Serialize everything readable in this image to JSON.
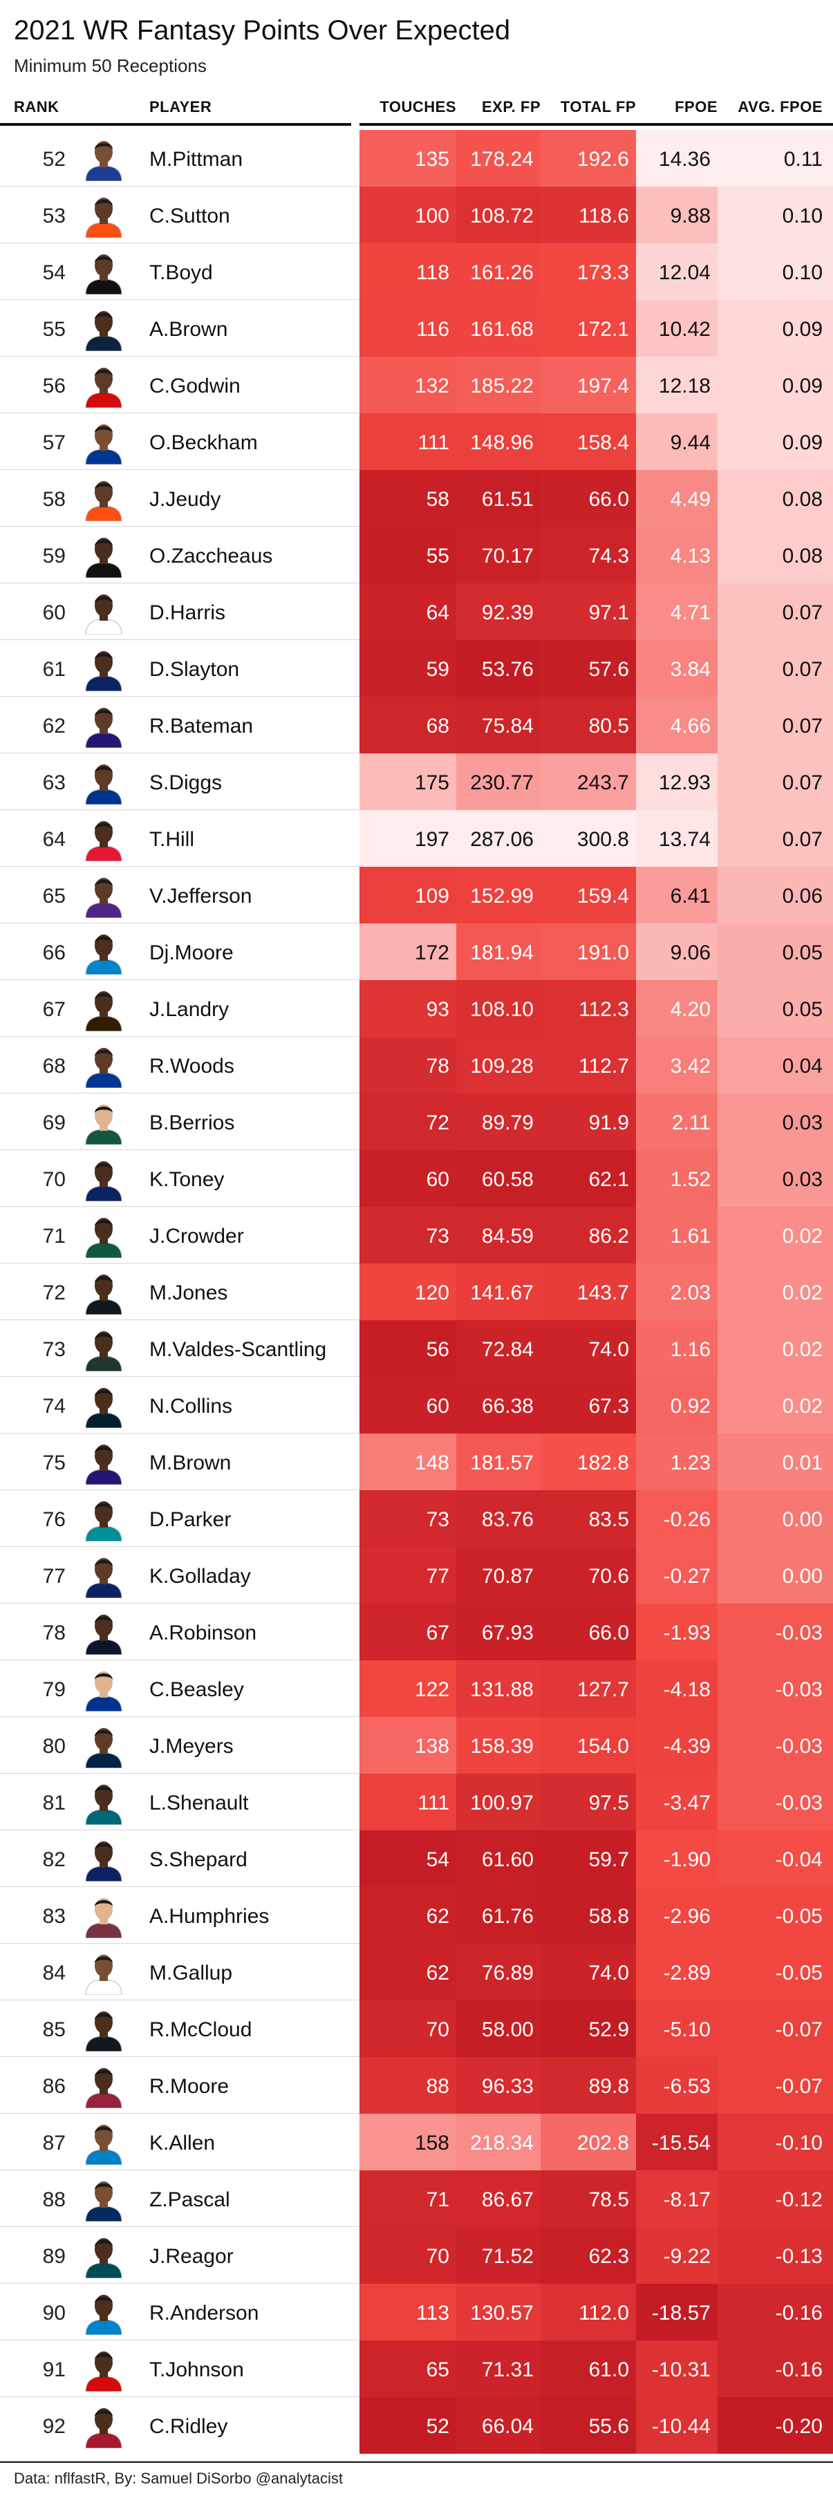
{
  "title": "2021 WR Fantasy Points Over Expected",
  "subtitle": "Minimum 50 Receptions",
  "caption": "Data: nflfastR, By: Samuel DiSorbo @analytacist",
  "headers": {
    "rank": "RANK",
    "player": "PLAYER",
    "touches": "TOUCHES",
    "exp_fp": "EXP. FP",
    "total_fp": "TOTAL FP",
    "fpoe": "FPOE",
    "avg_fpoe": "AVG. FPOE"
  },
  "icons": {
    "avatar": "player-headshot-icon"
  },
  "colors": {
    "high": "#ffecec",
    "low": "#c41c24"
  },
  "rows": [
    {
      "rank": "52",
      "player": "M.Pittman",
      "touches": "135",
      "exp_fp": "178.24",
      "total_fp": "192.6",
      "fpoe": "14.36",
      "avg_fpoe": "0.11",
      "jersey": "#1b3d8f",
      "skin": "#7a4e33"
    },
    {
      "rank": "53",
      "player": "C.Sutton",
      "touches": "100",
      "exp_fp": "108.72",
      "total_fp": "118.6",
      "fpoe": "9.88",
      "avg_fpoe": "0.10",
      "jersey": "#fb4f14",
      "skin": "#5e3b27"
    },
    {
      "rank": "54",
      "player": "T.Boyd",
      "touches": "118",
      "exp_fp": "161.26",
      "total_fp": "173.3",
      "fpoe": "12.04",
      "avg_fpoe": "0.10",
      "jersey": "#111111",
      "skin": "#5e3b27"
    },
    {
      "rank": "55",
      "player": "A.Brown",
      "touches": "116",
      "exp_fp": "161.68",
      "total_fp": "172.1",
      "fpoe": "10.42",
      "avg_fpoe": "0.09",
      "jersey": "#0c2340",
      "skin": "#4b2e1e"
    },
    {
      "rank": "56",
      "player": "C.Godwin",
      "touches": "132",
      "exp_fp": "185.22",
      "total_fp": "197.4",
      "fpoe": "12.18",
      "avg_fpoe": "0.09",
      "jersey": "#d50a0a",
      "skin": "#5e3b27"
    },
    {
      "rank": "57",
      "player": "O.Beckham",
      "touches": "111",
      "exp_fp": "148.96",
      "total_fp": "158.4",
      "fpoe": "9.44",
      "avg_fpoe": "0.09",
      "jersey": "#003594",
      "skin": "#7a4e33"
    },
    {
      "rank": "58",
      "player": "J.Jeudy",
      "touches": "58",
      "exp_fp": "61.51",
      "total_fp": "66.0",
      "fpoe": "4.49",
      "avg_fpoe": "0.08",
      "jersey": "#fb4f14",
      "skin": "#5e3b27"
    },
    {
      "rank": "59",
      "player": "O.Zaccheaus",
      "touches": "55",
      "exp_fp": "70.17",
      "total_fp": "74.3",
      "fpoe": "4.13",
      "avg_fpoe": "0.08",
      "jersey": "#111111",
      "skin": "#4b2e1e"
    },
    {
      "rank": "60",
      "player": "D.Harris",
      "touches": "64",
      "exp_fp": "92.39",
      "total_fp": "97.1",
      "fpoe": "4.71",
      "avg_fpoe": "0.07",
      "jersey": "#ffffff",
      "skin": "#4b2e1e"
    },
    {
      "rank": "61",
      "player": "D.Slayton",
      "touches": "59",
      "exp_fp": "53.76",
      "total_fp": "57.6",
      "fpoe": "3.84",
      "avg_fpoe": "0.07",
      "jersey": "#0b2265",
      "skin": "#4b2e1e"
    },
    {
      "rank": "62",
      "player": "R.Bateman",
      "touches": "68",
      "exp_fp": "75.84",
      "total_fp": "80.5",
      "fpoe": "4.66",
      "avg_fpoe": "0.07",
      "jersey": "#241773",
      "skin": "#5e3b27"
    },
    {
      "rank": "63",
      "player": "S.Diggs",
      "touches": "175",
      "exp_fp": "230.77",
      "total_fp": "243.7",
      "fpoe": "12.93",
      "avg_fpoe": "0.07",
      "jersey": "#00338d",
      "skin": "#5e3b27"
    },
    {
      "rank": "64",
      "player": "T.Hill",
      "touches": "197",
      "exp_fp": "287.06",
      "total_fp": "300.8",
      "fpoe": "13.74",
      "avg_fpoe": "0.07",
      "jersey": "#e31837",
      "skin": "#4b2e1e"
    },
    {
      "rank": "65",
      "player": "V.Jefferson",
      "touches": "109",
      "exp_fp": "152.99",
      "total_fp": "159.4",
      "fpoe": "6.41",
      "avg_fpoe": "0.06",
      "jersey": "#4f2683",
      "skin": "#5e3b27"
    },
    {
      "rank": "66",
      "player": "Dj.Moore",
      "touches": "172",
      "exp_fp": "181.94",
      "total_fp": "191.0",
      "fpoe": "9.06",
      "avg_fpoe": "0.05",
      "jersey": "#0085ca",
      "skin": "#4b2e1e"
    },
    {
      "rank": "67",
      "player": "J.Landry",
      "touches": "93",
      "exp_fp": "108.10",
      "total_fp": "112.3",
      "fpoe": "4.20",
      "avg_fpoe": "0.05",
      "jersey": "#311d00",
      "skin": "#4b2e1e"
    },
    {
      "rank": "68",
      "player": "R.Woods",
      "touches": "78",
      "exp_fp": "109.28",
      "total_fp": "112.7",
      "fpoe": "3.42",
      "avg_fpoe": "0.04",
      "jersey": "#003594",
      "skin": "#5e3b27"
    },
    {
      "rank": "69",
      "player": "B.Berrios",
      "touches": "72",
      "exp_fp": "89.79",
      "total_fp": "91.9",
      "fpoe": "2.11",
      "avg_fpoe": "0.03",
      "jersey": "#125740",
      "skin": "#e0b48f"
    },
    {
      "rank": "70",
      "player": "K.Toney",
      "touches": "60",
      "exp_fp": "60.58",
      "total_fp": "62.1",
      "fpoe": "1.52",
      "avg_fpoe": "0.03",
      "jersey": "#0b2265",
      "skin": "#4b2e1e"
    },
    {
      "rank": "71",
      "player": "J.Crowder",
      "touches": "73",
      "exp_fp": "84.59",
      "total_fp": "86.2",
      "fpoe": "1.61",
      "avg_fpoe": "0.02",
      "jersey": "#125740",
      "skin": "#4b2e1e"
    },
    {
      "rank": "72",
      "player": "M.Jones",
      "touches": "120",
      "exp_fp": "141.67",
      "total_fp": "143.7",
      "fpoe": "2.03",
      "avg_fpoe": "0.02",
      "jersey": "#101820",
      "skin": "#4b2e1e"
    },
    {
      "rank": "73",
      "player": "M.Valdes-Scantling",
      "touches": "56",
      "exp_fp": "72.84",
      "total_fp": "74.0",
      "fpoe": "1.16",
      "avg_fpoe": "0.02",
      "jersey": "#203731",
      "skin": "#4b2e1e"
    },
    {
      "rank": "74",
      "player": "N.Collins",
      "touches": "60",
      "exp_fp": "66.38",
      "total_fp": "67.3",
      "fpoe": "0.92",
      "avg_fpoe": "0.02",
      "jersey": "#03202f",
      "skin": "#4b2e1e"
    },
    {
      "rank": "75",
      "player": "M.Brown",
      "touches": "148",
      "exp_fp": "181.57",
      "total_fp": "182.8",
      "fpoe": "1.23",
      "avg_fpoe": "0.01",
      "jersey": "#241773",
      "skin": "#4b2e1e"
    },
    {
      "rank": "76",
      "player": "D.Parker",
      "touches": "73",
      "exp_fp": "83.76",
      "total_fp": "83.5",
      "fpoe": "-0.26",
      "avg_fpoe": "0.00",
      "jersey": "#008e97",
      "skin": "#4b2e1e"
    },
    {
      "rank": "77",
      "player": "K.Golladay",
      "touches": "77",
      "exp_fp": "70.87",
      "total_fp": "70.6",
      "fpoe": "-0.27",
      "avg_fpoe": "0.00",
      "jersey": "#0b2265",
      "skin": "#5e3b27"
    },
    {
      "rank": "78",
      "player": "A.Robinson",
      "touches": "67",
      "exp_fp": "67.93",
      "total_fp": "66.0",
      "fpoe": "-1.93",
      "avg_fpoe": "-0.03",
      "jersey": "#0b162a",
      "skin": "#4b2e1e"
    },
    {
      "rank": "79",
      "player": "C.Beasley",
      "touches": "122",
      "exp_fp": "131.88",
      "total_fp": "127.7",
      "fpoe": "-4.18",
      "avg_fpoe": "-0.03",
      "jersey": "#00338d",
      "skin": "#e0b48f"
    },
    {
      "rank": "80",
      "player": "J.Meyers",
      "touches": "138",
      "exp_fp": "158.39",
      "total_fp": "154.0",
      "fpoe": "-4.39",
      "avg_fpoe": "-0.03",
      "jersey": "#002244",
      "skin": "#5e3b27"
    },
    {
      "rank": "81",
      "player": "L.Shenault",
      "touches": "111",
      "exp_fp": "100.97",
      "total_fp": "97.5",
      "fpoe": "-3.47",
      "avg_fpoe": "-0.03",
      "jersey": "#006778",
      "skin": "#4b2e1e"
    },
    {
      "rank": "82",
      "player": "S.Shepard",
      "touches": "54",
      "exp_fp": "61.60",
      "total_fp": "59.7",
      "fpoe": "-1.90",
      "avg_fpoe": "-0.04",
      "jersey": "#0b2265",
      "skin": "#4b2e1e"
    },
    {
      "rank": "83",
      "player": "A.Humphries",
      "touches": "62",
      "exp_fp": "61.76",
      "total_fp": "58.8",
      "fpoe": "-2.96",
      "avg_fpoe": "-0.05",
      "jersey": "#773141",
      "skin": "#e0b48f"
    },
    {
      "rank": "84",
      "player": "M.Gallup",
      "touches": "62",
      "exp_fp": "76.89",
      "total_fp": "74.0",
      "fpoe": "-2.89",
      "avg_fpoe": "-0.05",
      "jersey": "#ffffff",
      "skin": "#7a4e33"
    },
    {
      "rank": "85",
      "player": "R.McCloud",
      "touches": "70",
      "exp_fp": "58.00",
      "total_fp": "52.9",
      "fpoe": "-5.10",
      "avg_fpoe": "-0.07",
      "jersey": "#101820",
      "skin": "#4b2e1e"
    },
    {
      "rank": "86",
      "player": "R.Moore",
      "touches": "88",
      "exp_fp": "96.33",
      "total_fp": "89.8",
      "fpoe": "-6.53",
      "avg_fpoe": "-0.07",
      "jersey": "#97233f",
      "skin": "#4b2e1e"
    },
    {
      "rank": "87",
      "player": "K.Allen",
      "touches": "158",
      "exp_fp": "218.34",
      "total_fp": "202.8",
      "fpoe": "-15.54",
      "avg_fpoe": "-0.10",
      "jersey": "#0080c6",
      "skin": "#7a4e33"
    },
    {
      "rank": "88",
      "player": "Z.Pascal",
      "touches": "71",
      "exp_fp": "86.67",
      "total_fp": "78.5",
      "fpoe": "-8.17",
      "avg_fpoe": "-0.12",
      "jersey": "#002c5f",
      "skin": "#7a4e33"
    },
    {
      "rank": "89",
      "player": "J.Reagor",
      "touches": "70",
      "exp_fp": "71.52",
      "total_fp": "62.3",
      "fpoe": "-9.22",
      "avg_fpoe": "-0.13",
      "jersey": "#004c54",
      "skin": "#4b2e1e"
    },
    {
      "rank": "90",
      "player": "R.Anderson",
      "touches": "113",
      "exp_fp": "130.57",
      "total_fp": "112.0",
      "fpoe": "-18.57",
      "avg_fpoe": "-0.16",
      "jersey": "#0085ca",
      "skin": "#4b2e1e"
    },
    {
      "rank": "91",
      "player": "T.Johnson",
      "touches": "65",
      "exp_fp": "71.31",
      "total_fp": "61.0",
      "fpoe": "-10.31",
      "avg_fpoe": "-0.16",
      "jersey": "#d50a0a",
      "skin": "#4b2e1e"
    },
    {
      "rank": "92",
      "player": "C.Ridley",
      "touches": "52",
      "exp_fp": "66.04",
      "total_fp": "55.6",
      "fpoe": "-10.44",
      "avg_fpoe": "-0.20",
      "jersey": "#a71930",
      "skin": "#4b2e1e"
    }
  ]
}
